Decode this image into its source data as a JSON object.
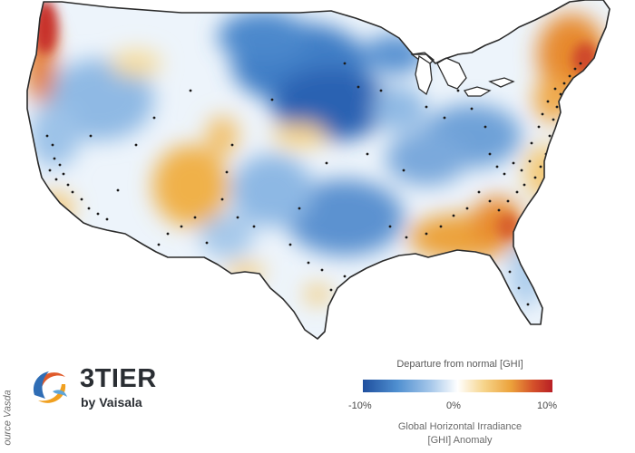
{
  "credit": "ource Vasda",
  "logo": {
    "name": "3TIER",
    "sub": "by Vaisala"
  },
  "legend": {
    "title": "Departure from normal [GHI]",
    "tick_min": "-10%",
    "tick_mid": "0%",
    "tick_max": "10%",
    "caption_line1": "Global Horizontal Irradiance",
    "caption_line2": "[GHI] Anomaly"
  },
  "colors": {
    "negative_strong": "#1f4f9e",
    "negative_light": "#a7c8ea",
    "neutral": "#ffffff",
    "positive_light": "#f6d48a",
    "positive_mid": "#eca23b",
    "positive_strong": "#b81f25"
  }
}
